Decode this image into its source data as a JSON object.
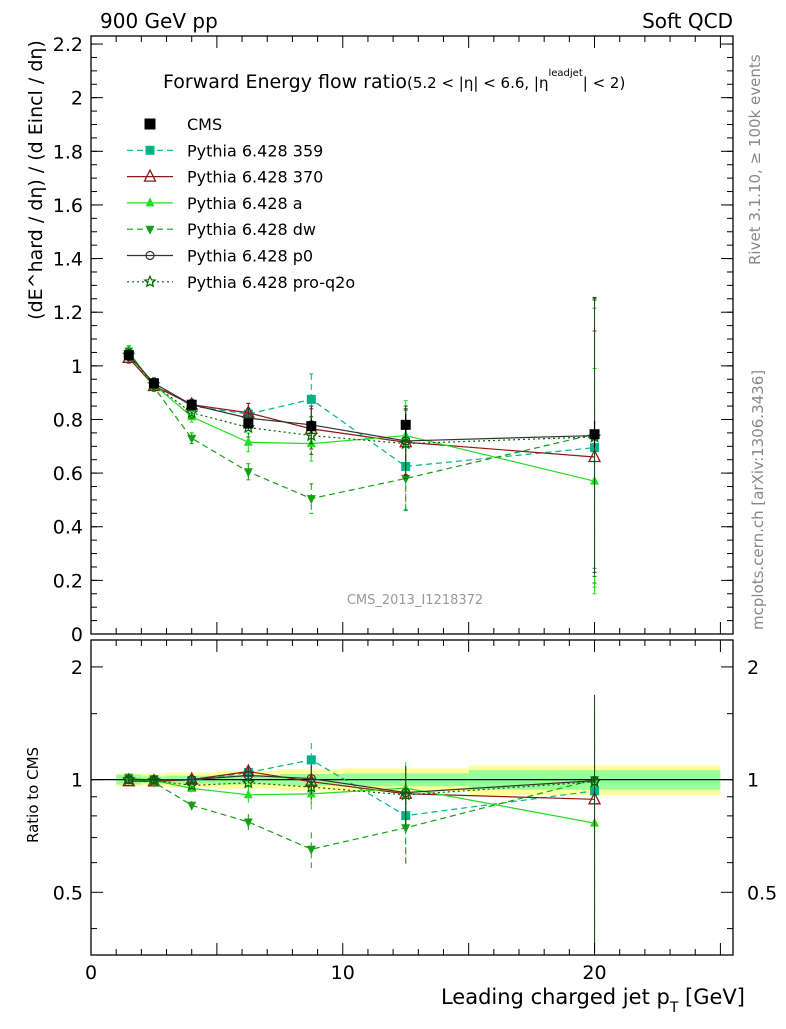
{
  "header": {
    "left": "900 GeV pp",
    "right": "Soft QCD"
  },
  "side": {
    "rivet": "Rivet 3.1.10, ≥ 100k events",
    "mcplots": "mcplots.cern.ch [arXiv:1306.3436]"
  },
  "watermark": "CMS_2013_I1218372",
  "chart_data": {
    "type": "line",
    "title": "Forward Energy flow ratio",
    "title_sub": "(5.2 < |η| < 6.6, |η",
    "title_sup": "leadjet",
    "title_end": "| < 2)",
    "ylabel_main": "(dE^hard / dη) / (d Eincl / dη)",
    "ylabel_ratio": "Ratio to CMS",
    "xlabel": "Leading charged jet p",
    "xlabel_sub": "T",
    "xlabel_end": " [GeV]",
    "xlim": [
      0,
      25.5
    ],
    "ylim_main": [
      0,
      2.23
    ],
    "ylim_ratio": [
      0.34,
      2.36
    ],
    "x_ticks": [
      "0",
      "10",
      "20"
    ],
    "y_ticks_main": [
      "0",
      "0.2",
      "0.4",
      "0.6",
      "0.8",
      "1",
      "1.2",
      "1.4",
      "1.6",
      "1.8",
      "2",
      "2.2"
    ],
    "y_ticks_ratio": [
      "0.5",
      "1",
      "2"
    ],
    "x": [
      1.5,
      2.5,
      4.0,
      6.25,
      8.75,
      12.5,
      20.0
    ],
    "cms": {
      "name": "CMS",
      "values": [
        1.04,
        0.935,
        0.855,
        0.785,
        0.775,
        0.78,
        0.745
      ],
      "errors": [
        0.02,
        0.015,
        0.015,
        0.02,
        0.025,
        0.04,
        0.05
      ],
      "band_x": [
        1.0,
        2.0,
        3.0,
        5.0,
        7.5,
        10.0,
        15.0,
        25.0
      ],
      "band_stat": [
        0.03,
        0.02,
        0.025,
        0.03,
        0.035,
        0.04,
        0.06
      ],
      "band_total": [
        0.04,
        0.035,
        0.045,
        0.055,
        0.065,
        0.07,
        0.09
      ]
    },
    "series": [
      {
        "name": "Pythia 6.428 359",
        "color": "#00b386",
        "dash": "6,4",
        "marker": "square",
        "values": [
          1.04,
          0.935,
          0.85,
          0.82,
          0.875,
          0.625,
          0.695
        ],
        "errors": [
          0.025,
          0.02,
          0.025,
          0.04,
          0.095,
          0.16,
          0.52
        ]
      },
      {
        "name": "Pythia 6.428 370",
        "color": "#8b1a1a",
        "dash": "",
        "marker": "triangle-open",
        "values": [
          1.03,
          0.925,
          0.855,
          0.825,
          0.765,
          0.715,
          0.66
        ],
        "errors": [
          0.02,
          0.02,
          0.02,
          0.035,
          0.075,
          0.12,
          0.47
        ]
      },
      {
        "name": "Pythia 6.428 a",
        "color": "#22dd22",
        "dash": "",
        "marker": "triangle",
        "values": [
          1.05,
          0.93,
          0.81,
          0.715,
          0.71,
          0.74,
          0.57
        ],
        "errors": [
          0.02,
          0.02,
          0.02,
          0.035,
          0.065,
          0.13,
          0.42
        ]
      },
      {
        "name": "Pythia 6.428 dw",
        "color": "#13a013",
        "dash": "6,4",
        "marker": "triangle-down",
        "values": [
          1.055,
          0.92,
          0.73,
          0.605,
          0.505,
          0.58,
          0.745
        ],
        "errors": [
          0.02,
          0.015,
          0.02,
          0.03,
          0.055,
          0.12,
          0.5
        ]
      },
      {
        "name": "Pythia 6.428 p0",
        "color": "#333333",
        "dash": "",
        "marker": "circle-open",
        "values": [
          1.04,
          0.935,
          0.855,
          0.805,
          0.78,
          0.72,
          0.74
        ],
        "errors": [
          0.02,
          0.02,
          0.02,
          0.035,
          0.07,
          0.13,
          0.51
        ]
      },
      {
        "name": "Pythia 6.428 pro-q2o",
        "color": "#006600",
        "dash": "2,3",
        "marker": "star-open",
        "values": [
          1.04,
          0.93,
          0.825,
          0.77,
          0.74,
          0.71,
          0.735
        ],
        "errors": [
          0.02,
          0.02,
          0.02,
          0.035,
          0.07,
          0.13,
          0.52
        ]
      }
    ],
    "legend_position": "top-left"
  }
}
